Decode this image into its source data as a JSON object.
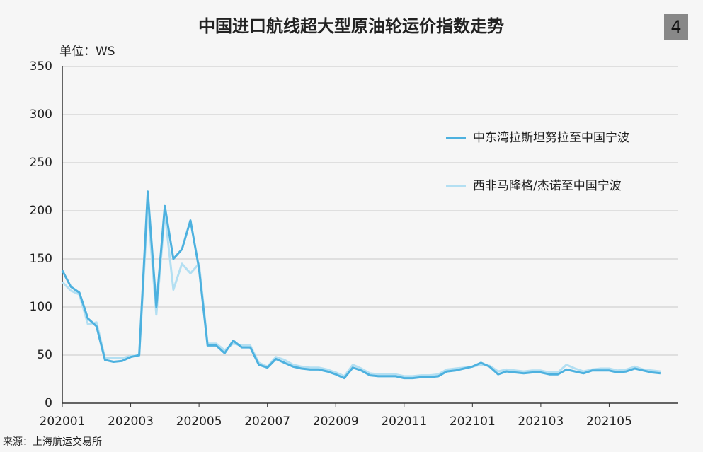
{
  "chart_data": {
    "type": "line",
    "title": "中国进口航线超大型原油轮运价指数走势",
    "badge": "4",
    "unit_label": "单位：WS",
    "source": "来源：上海航运交易所",
    "x": [
      0,
      0.25,
      0.5,
      0.75,
      1,
      1.25,
      1.5,
      1.75,
      2,
      2.25,
      2.5,
      2.75,
      3,
      3.25,
      3.5,
      3.75,
      4,
      4.25,
      4.5,
      4.75,
      5,
      5.25,
      5.5,
      5.75,
      6,
      6.25,
      6.5,
      6.75,
      7,
      7.25,
      7.5,
      7.75,
      8,
      8.25,
      8.5,
      8.75,
      9,
      9.25,
      9.5,
      9.75,
      10,
      10.25,
      10.5,
      10.75,
      11,
      11.25,
      11.5,
      11.75,
      12,
      12.25,
      12.5,
      12.75,
      13,
      13.25,
      13.5,
      13.75,
      14,
      14.25,
      14.5,
      14.75,
      15,
      15.25,
      15.5,
      15.75,
      16,
      16.25,
      16.5,
      16.75,
      17,
      17.25,
      17.5
    ],
    "series": [
      {
        "name": "中东湾拉斯坦努拉至中国宁波",
        "color": "#4db1df",
        "values": [
          138,
          121,
          115,
          88,
          80,
          45,
          43,
          44,
          48,
          50,
          220,
          100,
          205,
          150,
          160,
          190,
          140,
          60,
          60,
          52,
          65,
          58,
          58,
          40,
          37,
          46,
          42,
          38,
          36,
          35,
          35,
          33,
          30,
          26,
          37,
          34,
          29,
          28,
          28,
          28,
          26,
          26,
          27,
          27,
          28,
          33,
          34,
          36,
          38,
          42,
          38,
          30,
          33,
          32,
          31,
          32,
          32,
          30,
          30,
          35,
          33,
          31,
          34,
          34,
          34,
          32,
          33,
          36,
          34,
          32,
          31
        ]
      },
      {
        "name": "西非马隆格/杰诺至中国宁波",
        "color": "#b3dff2",
        "values": [
          126,
          117,
          113,
          82,
          84,
          47,
          47,
          47,
          49,
          49,
          205,
          92,
          198,
          118,
          145,
          135,
          145,
          62,
          62,
          55,
          62,
          60,
          60,
          42,
          38,
          48,
          45,
          40,
          38,
          37,
          37,
          35,
          32,
          28,
          40,
          36,
          31,
          30,
          30,
          30,
          28,
          28,
          29,
          29,
          30,
          35,
          36,
          37,
          38,
          40,
          39,
          33,
          35,
          34,
          33,
          34,
          34,
          32,
          32,
          40,
          36,
          33,
          35,
          36,
          36,
          34,
          35,
          38,
          35,
          34,
          33
        ]
      }
    ],
    "xlim": [
      0,
      18
    ],
    "xticks": [
      {
        "value": 0,
        "label": "202001"
      },
      {
        "value": 2,
        "label": "202003"
      },
      {
        "value": 4,
        "label": "202005"
      },
      {
        "value": 6,
        "label": "202007"
      },
      {
        "value": 8,
        "label": "202009"
      },
      {
        "value": 10,
        "label": "202011"
      },
      {
        "value": 12,
        "label": "202101"
      },
      {
        "value": 14,
        "label": "202103"
      },
      {
        "value": 16,
        "label": "202105"
      }
    ],
    "ylim": [
      0,
      350
    ],
    "yticks": [
      0,
      50,
      100,
      150,
      200,
      250,
      300,
      350
    ],
    "grid": true
  }
}
